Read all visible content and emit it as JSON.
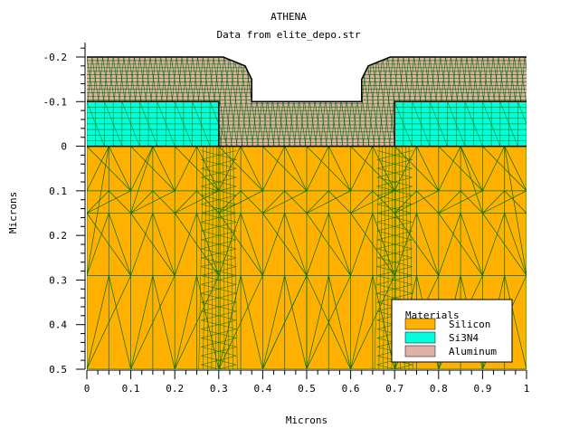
{
  "chart_data": {
    "type": "area",
    "title": "ATHENA",
    "subtitle": "Data from elite_depo.str",
    "xlabel": "Microns",
    "ylabel": "Microns",
    "xlim": [
      0,
      1
    ],
    "ylim": [
      -0.2,
      0.5
    ],
    "y_inverted": true,
    "x_ticks": [
      "0",
      "0.1",
      "0.2",
      "0.3",
      "0.4",
      "0.5",
      "0.6",
      "0.7",
      "0.8",
      "0.9",
      "1"
    ],
    "x_tick_values": [
      0,
      0.1,
      0.2,
      0.3,
      0.4,
      0.5,
      0.6,
      0.7,
      0.8,
      0.9,
      1.0
    ],
    "y_ticks": [
      "-0.2",
      "-0.1",
      "0",
      "0.1",
      "0.2",
      "0.3",
      "0.4",
      "0.5"
    ],
    "y_tick_values": [
      -0.2,
      -0.1,
      0,
      0.1,
      0.2,
      0.3,
      0.4,
      0.5
    ],
    "legend": {
      "title": "Materials",
      "placement": "bottom-right",
      "items": [
        {
          "name": "Silicon",
          "color": "#ffb000"
        },
        {
          "name": "Si3N4",
          "color": "#00ffdd"
        },
        {
          "name": "Aluminum",
          "color": "#e0b0a8"
        }
      ]
    },
    "regions": [
      {
        "material": "Silicon",
        "color": "#ffb000",
        "polygon": [
          [
            0,
            0
          ],
          [
            1,
            0
          ],
          [
            1,
            0.5
          ],
          [
            0,
            0.5
          ]
        ]
      },
      {
        "material": "Si3N4",
        "color": "#00ffdd",
        "polygon": [
          [
            0,
            -0.1
          ],
          [
            0.3,
            -0.1
          ],
          [
            0.3,
            0
          ],
          [
            0,
            0
          ]
        ]
      },
      {
        "material": "Si3N4",
        "color": "#00ffdd",
        "polygon": [
          [
            0.7,
            -0.1
          ],
          [
            1,
            -0.1
          ],
          [
            1,
            0
          ],
          [
            0.7,
            0
          ]
        ]
      },
      {
        "material": "Aluminum",
        "color": "#e0b0a8",
        "polygon": [
          [
            0,
            -0.2
          ],
          [
            0.31,
            -0.2
          ],
          [
            0.36,
            -0.18
          ],
          [
            0.375,
            -0.15
          ],
          [
            0.375,
            -0.1
          ],
          [
            0.625,
            -0.1
          ],
          [
            0.625,
            -0.15
          ],
          [
            0.64,
            -0.18
          ],
          [
            0.69,
            -0.2
          ],
          [
            1,
            -0.2
          ],
          [
            1,
            -0.1
          ],
          [
            0.7,
            -0.1
          ],
          [
            0.7,
            0
          ],
          [
            0.3,
            0
          ],
          [
            0.3,
            -0.1
          ],
          [
            0,
            -0.1
          ]
        ]
      }
    ],
    "mesh_color": "#007000",
    "grid": false
  }
}
